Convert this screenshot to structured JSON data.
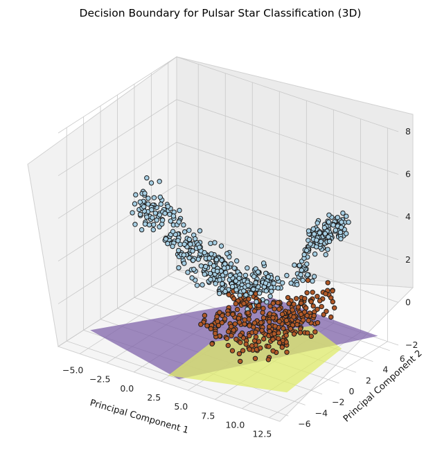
{
  "chart_data": {
    "type": "scatter",
    "title": "Decision Boundary for Pulsar Star Classification (3D)",
    "xlabel": "Principal Component 1",
    "ylabel": "Principal Component 2",
    "zlabel": "",
    "xlim": [
      -7,
      13.5
    ],
    "ylim": [
      -7,
      7
    ],
    "zlim": [
      -2,
      8
    ],
    "x_ticks": [
      "−5.0",
      "−2.5",
      "0.0",
      "2.5",
      "5.0",
      "7.5",
      "10.0",
      "12.5"
    ],
    "y_ticks": [
      "−6",
      "−4",
      "−2",
      "0",
      "2",
      "4",
      "6"
    ],
    "z_ticks": [
      "−2",
      "0",
      "2",
      "4",
      "6",
      "8"
    ],
    "grid": true,
    "colors": {
      "class_0": "#a6cee3",
      "class_1": "#b15928",
      "region_0": "#7b5ea7",
      "region_1": "#dfeb6b",
      "edge": "#1b1b1b"
    },
    "series": [
      {
        "class": 0,
        "cloud": {
          "x_range": [
            -6,
            11
          ],
          "y_range": [
            -2,
            6
          ],
          "z_range": [
            -1,
            6
          ]
        }
      },
      {
        "class": 1,
        "cloud": {
          "x_range": [
            2,
            12.5
          ],
          "y_range": [
            -6,
            3
          ],
          "z_range": [
            -1.5,
            3
          ]
        }
      }
    ],
    "decision_surface": {
      "z": -1.7,
      "region_0_label": 0,
      "region_1_label": 1
    }
  }
}
